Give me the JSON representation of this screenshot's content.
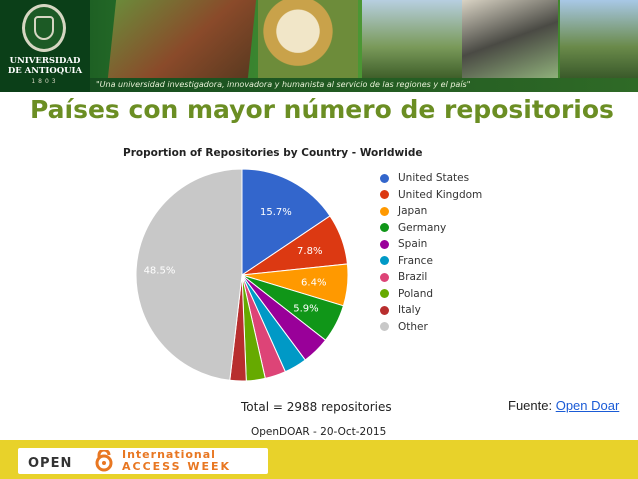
{
  "header": {
    "university_line1": "UNIVERSIDAD",
    "university_line2": "DE ANTIOQUIA",
    "university_year": "1803",
    "tagline": "\"Una universidad investigadora, innovadora y humanista al servicio de las regiones y el país\""
  },
  "slide_title": "Países con mayor número de repositorios",
  "chart_data": {
    "type": "pie",
    "title": "Proportion of Repositories by Country - Worldwide",
    "categories": [
      "United States",
      "United Kingdom",
      "Japan",
      "Germany",
      "Spain",
      "France",
      "Brazil",
      "Poland",
      "Italy",
      "Other"
    ],
    "values": [
      15.7,
      7.8,
      6.4,
      5.9,
      4.3,
      3.5,
      3.2,
      2.9,
      2.5,
      48.5
    ],
    "value_labels": [
      "15.7%",
      "7.8%",
      "6.4%",
      "5.9%",
      "",
      "",
      "",
      "",
      "",
      "48.5%"
    ],
    "colors": [
      "#3366cc",
      "#dc3912",
      "#ff9900",
      "#109618",
      "#990099",
      "#0099c6",
      "#dd4477",
      "#66aa00",
      "#b82e2e",
      "#c8c8c8"
    ],
    "label_colors": [
      "#ffffff",
      "#ffffff",
      "#ffffff",
      "#ffffff",
      "#ffffff",
      "#ffffff",
      "#ffffff",
      "#ffffff",
      "#ffffff",
      "#ffffff"
    ],
    "legend_position": "right",
    "total_text": "Total = 2988 repositories",
    "source_text": "OpenDOAR - 20-Oct-2015"
  },
  "source": {
    "prefix": "Fuente: ",
    "link_text": "Open Doar"
  },
  "oa_banner": {
    "open": "OPEN",
    "international": "International",
    "access_week": "ACCESS WEEK"
  }
}
